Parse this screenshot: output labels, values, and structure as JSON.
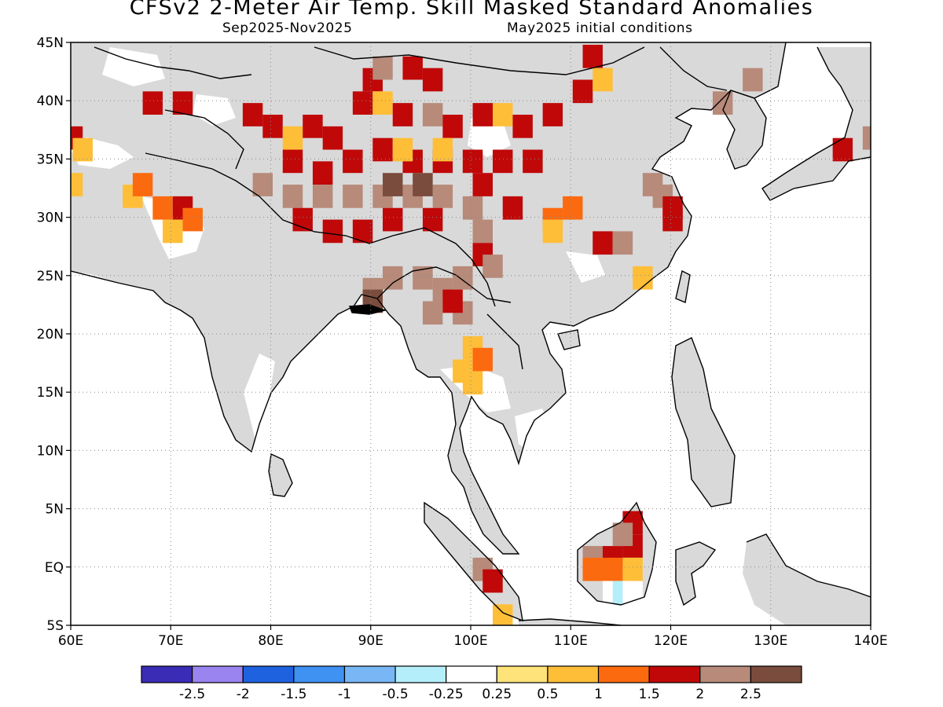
{
  "title": "CFSv2 2-Meter Air Temp. Skill Masked Standard Anomalies",
  "subtitle_left": "Sep2025-Nov2025",
  "subtitle_right": "May2025 initial conditions",
  "map": {
    "lon_labels": [
      "60E",
      "70E",
      "80E",
      "90E",
      "100E",
      "110E",
      "120E",
      "130E",
      "140E"
    ],
    "lat_labels": [
      "45N",
      "40N",
      "35N",
      "30N",
      "25N",
      "20N",
      "15N",
      "10N",
      "5N",
      "EQ",
      "5S"
    ],
    "colors": {
      "land_masked": "#d9d9d9",
      "ocean": "#ffffff",
      "coast": "#000000",
      "grid": "#888888"
    }
  },
  "colorbar": {
    "colors": [
      "#3b2cb5",
      "#9a85f0",
      "#1f62e0",
      "#3f91f2",
      "#78b6f5",
      "#b4eefb",
      "#ffffff",
      "#fee27a",
      "#febe38",
      "#fc6a10",
      "#c00808",
      "#b78a7a",
      "#7a4c3d"
    ],
    "labels": [
      "-2.5",
      "-2",
      "-1.5",
      "-1",
      "-0.5",
      "-0.25",
      "0.25",
      "0.5",
      "1",
      "1.5",
      "2",
      "2.5"
    ]
  },
  "anomaly_cells": [
    {
      "lon": 90,
      "lat": 42,
      "v": 1.5
    },
    {
      "lon": 91,
      "lat": 43,
      "v": 2
    },
    {
      "lon": 94,
      "lat": 43,
      "v": 1.5
    },
    {
      "lon": 96,
      "lat": 42,
      "v": 1.5
    },
    {
      "lon": 89,
      "lat": 40,
      "v": 1.5
    },
    {
      "lon": 91,
      "lat": 40,
      "v": 0.5
    },
    {
      "lon": 93,
      "lat": 39,
      "v": 1.5
    },
    {
      "lon": 96,
      "lat": 39,
      "v": 2
    },
    {
      "lon": 98,
      "lat": 38,
      "v": 1.5
    },
    {
      "lon": 101,
      "lat": 39,
      "v": 1.5
    },
    {
      "lon": 103,
      "lat": 39,
      "v": 0.5
    },
    {
      "lon": 105,
      "lat": 38,
      "v": 1.5
    },
    {
      "lon": 108,
      "lat": 39,
      "v": 1.5
    },
    {
      "lon": 111,
      "lat": 41,
      "v": 1.5
    },
    {
      "lon": 112,
      "lat": 44,
      "v": 1.5
    },
    {
      "lon": 113,
      "lat": 42,
      "v": 0.5
    },
    {
      "lon": 78,
      "lat": 39,
      "v": 1.5
    },
    {
      "lon": 80,
      "lat": 38,
      "v": 1.5
    },
    {
      "lon": 82,
      "lat": 37,
      "v": 0.5
    },
    {
      "lon": 84,
      "lat": 38,
      "v": 1.5
    },
    {
      "lon": 86,
      "lat": 37,
      "v": 1.5
    },
    {
      "lon": 82,
      "lat": 35,
      "v": 1.5
    },
    {
      "lon": 85,
      "lat": 34,
      "v": 1.5
    },
    {
      "lon": 88,
      "lat": 35,
      "v": 1.5
    },
    {
      "lon": 91,
      "lat": 36,
      "v": 1.5
    },
    {
      "lon": 94,
      "lat": 35,
      "v": 1.5
    },
    {
      "lon": 97,
      "lat": 35,
      "v": 1.5
    },
    {
      "lon": 100,
      "lat": 35,
      "v": 1.5
    },
    {
      "lon": 103,
      "lat": 35,
      "v": 1.5
    },
    {
      "lon": 106,
      "lat": 35,
      "v": 1.5
    },
    {
      "lon": 93,
      "lat": 36,
      "v": 0.5
    },
    {
      "lon": 97,
      "lat": 36,
      "v": 0.5
    },
    {
      "lon": 79,
      "lat": 33,
      "v": 2
    },
    {
      "lon": 82,
      "lat": 32,
      "v": 2
    },
    {
      "lon": 85,
      "lat": 32,
      "v": 2
    },
    {
      "lon": 88,
      "lat": 32,
      "v": 2
    },
    {
      "lon": 91,
      "lat": 32,
      "v": 2
    },
    {
      "lon": 94,
      "lat": 32,
      "v": 2
    },
    {
      "lon": 97,
      "lat": 32,
      "v": 2
    },
    {
      "lon": 92,
      "lat": 33,
      "v": 2.5
    },
    {
      "lon": 95,
      "lat": 33,
      "v": 2.5
    },
    {
      "lon": 100,
      "lat": 31,
      "v": 2
    },
    {
      "lon": 101,
      "lat": 29,
      "v": 2
    },
    {
      "lon": 83,
      "lat": 30,
      "v": 1.5
    },
    {
      "lon": 86,
      "lat": 29,
      "v": 1.5
    },
    {
      "lon": 89,
      "lat": 29,
      "v": 1.5
    },
    {
      "lon": 92,
      "lat": 30,
      "v": 1.5
    },
    {
      "lon": 96,
      "lat": 30,
      "v": 1.5
    },
    {
      "lon": 101,
      "lat": 27,
      "v": 1.5
    },
    {
      "lon": 104,
      "lat": 31,
      "v": 1.5
    },
    {
      "lon": 101,
      "lat": 33,
      "v": 1.5
    },
    {
      "lon": 102,
      "lat": 26,
      "v": 2
    },
    {
      "lon": 60,
      "lat": 37,
      "v": 1.5
    },
    {
      "lon": 61,
      "lat": 36,
      "v": 0.5
    },
    {
      "lon": 60,
      "lat": 33,
      "v": 0.5
    },
    {
      "lon": 66,
      "lat": 32,
      "v": 0.5
    },
    {
      "lon": 69,
      "lat": 31,
      "v": 1
    },
    {
      "lon": 71,
      "lat": 31,
      "v": 1.5
    },
    {
      "lon": 72,
      "lat": 30,
      "v": 1
    },
    {
      "lon": 70,
      "lat": 29,
      "v": 0.5
    },
    {
      "lon": 67,
      "lat": 33,
      "v": 1
    },
    {
      "lon": 71,
      "lat": 40,
      "v": 1.5
    },
    {
      "lon": 68,
      "lat": 40,
      "v": 1.5
    },
    {
      "lon": 90,
      "lat": 24,
      "v": 2
    },
    {
      "lon": 92,
      "lat": 25,
      "v": 2
    },
    {
      "lon": 90,
      "lat": 23,
      "v": 2.5
    },
    {
      "lon": 95,
      "lat": 25,
      "v": 2
    },
    {
      "lon": 97,
      "lat": 24,
      "v": 2
    },
    {
      "lon": 99,
      "lat": 25,
      "v": 2
    },
    {
      "lon": 96,
      "lat": 22,
      "v": 2
    },
    {
      "lon": 99,
      "lat": 22,
      "v": 2
    },
    {
      "lon": 98,
      "lat": 23,
      "v": 1.5
    },
    {
      "lon": 100,
      "lat": 19,
      "v": 0.5
    },
    {
      "lon": 101,
      "lat": 18,
      "v": 1
    },
    {
      "lon": 99,
      "lat": 17,
      "v": 0.5
    },
    {
      "lon": 100,
      "lat": 16,
      "v": 0.5
    },
    {
      "lon": 108,
      "lat": 30,
      "v": 1
    },
    {
      "lon": 110,
      "lat": 31,
      "v": 1
    },
    {
      "lon": 108,
      "lat": 29,
      "v": 0.5
    },
    {
      "lon": 113,
      "lat": 28,
      "v": 1.5
    },
    {
      "lon": 115,
      "lat": 28,
      "v": 2
    },
    {
      "lon": 118,
      "lat": 33,
      "v": 2
    },
    {
      "lon": 119,
      "lat": 32,
      "v": 2
    },
    {
      "lon": 120,
      "lat": 31,
      "v": 1.5
    },
    {
      "lon": 120,
      "lat": 30,
      "v": 1.5
    },
    {
      "lon": 117,
      "lat": 25,
      "v": 0.5
    },
    {
      "lon": 125,
      "lat": 40,
      "v": 2
    },
    {
      "lon": 128,
      "lat": 42,
      "v": 2
    },
    {
      "lon": 137,
      "lat": 36,
      "v": 1.5
    },
    {
      "lon": 140,
      "lat": 37,
      "v": 2
    },
    {
      "lon": 101,
      "lat": 0,
      "v": 2
    },
    {
      "lon": 102,
      "lat": -1,
      "v": 1.5
    },
    {
      "lon": 103,
      "lat": -4,
      "v": 0.5
    },
    {
      "lon": 112,
      "lat": 1,
      "v": 2
    },
    {
      "lon": 114,
      "lat": 1,
      "v": 1.5
    },
    {
      "lon": 116,
      "lat": 2,
      "v": 1.5
    },
    {
      "lon": 116,
      "lat": 4,
      "v": 1.5
    },
    {
      "lon": 115,
      "lat": 3,
      "v": 2
    },
    {
      "lon": 112,
      "lat": 0,
      "v": 1
    },
    {
      "lon": 114,
      "lat": 0,
      "v": 1
    },
    {
      "lon": 116,
      "lat": 0,
      "v": 0.5
    },
    {
      "lon": 114,
      "lat": -2,
      "v": -0.25
    },
    {
      "lon": 115,
      "lat": -2,
      "v": -0.5
    },
    {
      "lon": 116,
      "lat": -2,
      "v": -0.25
    }
  ]
}
